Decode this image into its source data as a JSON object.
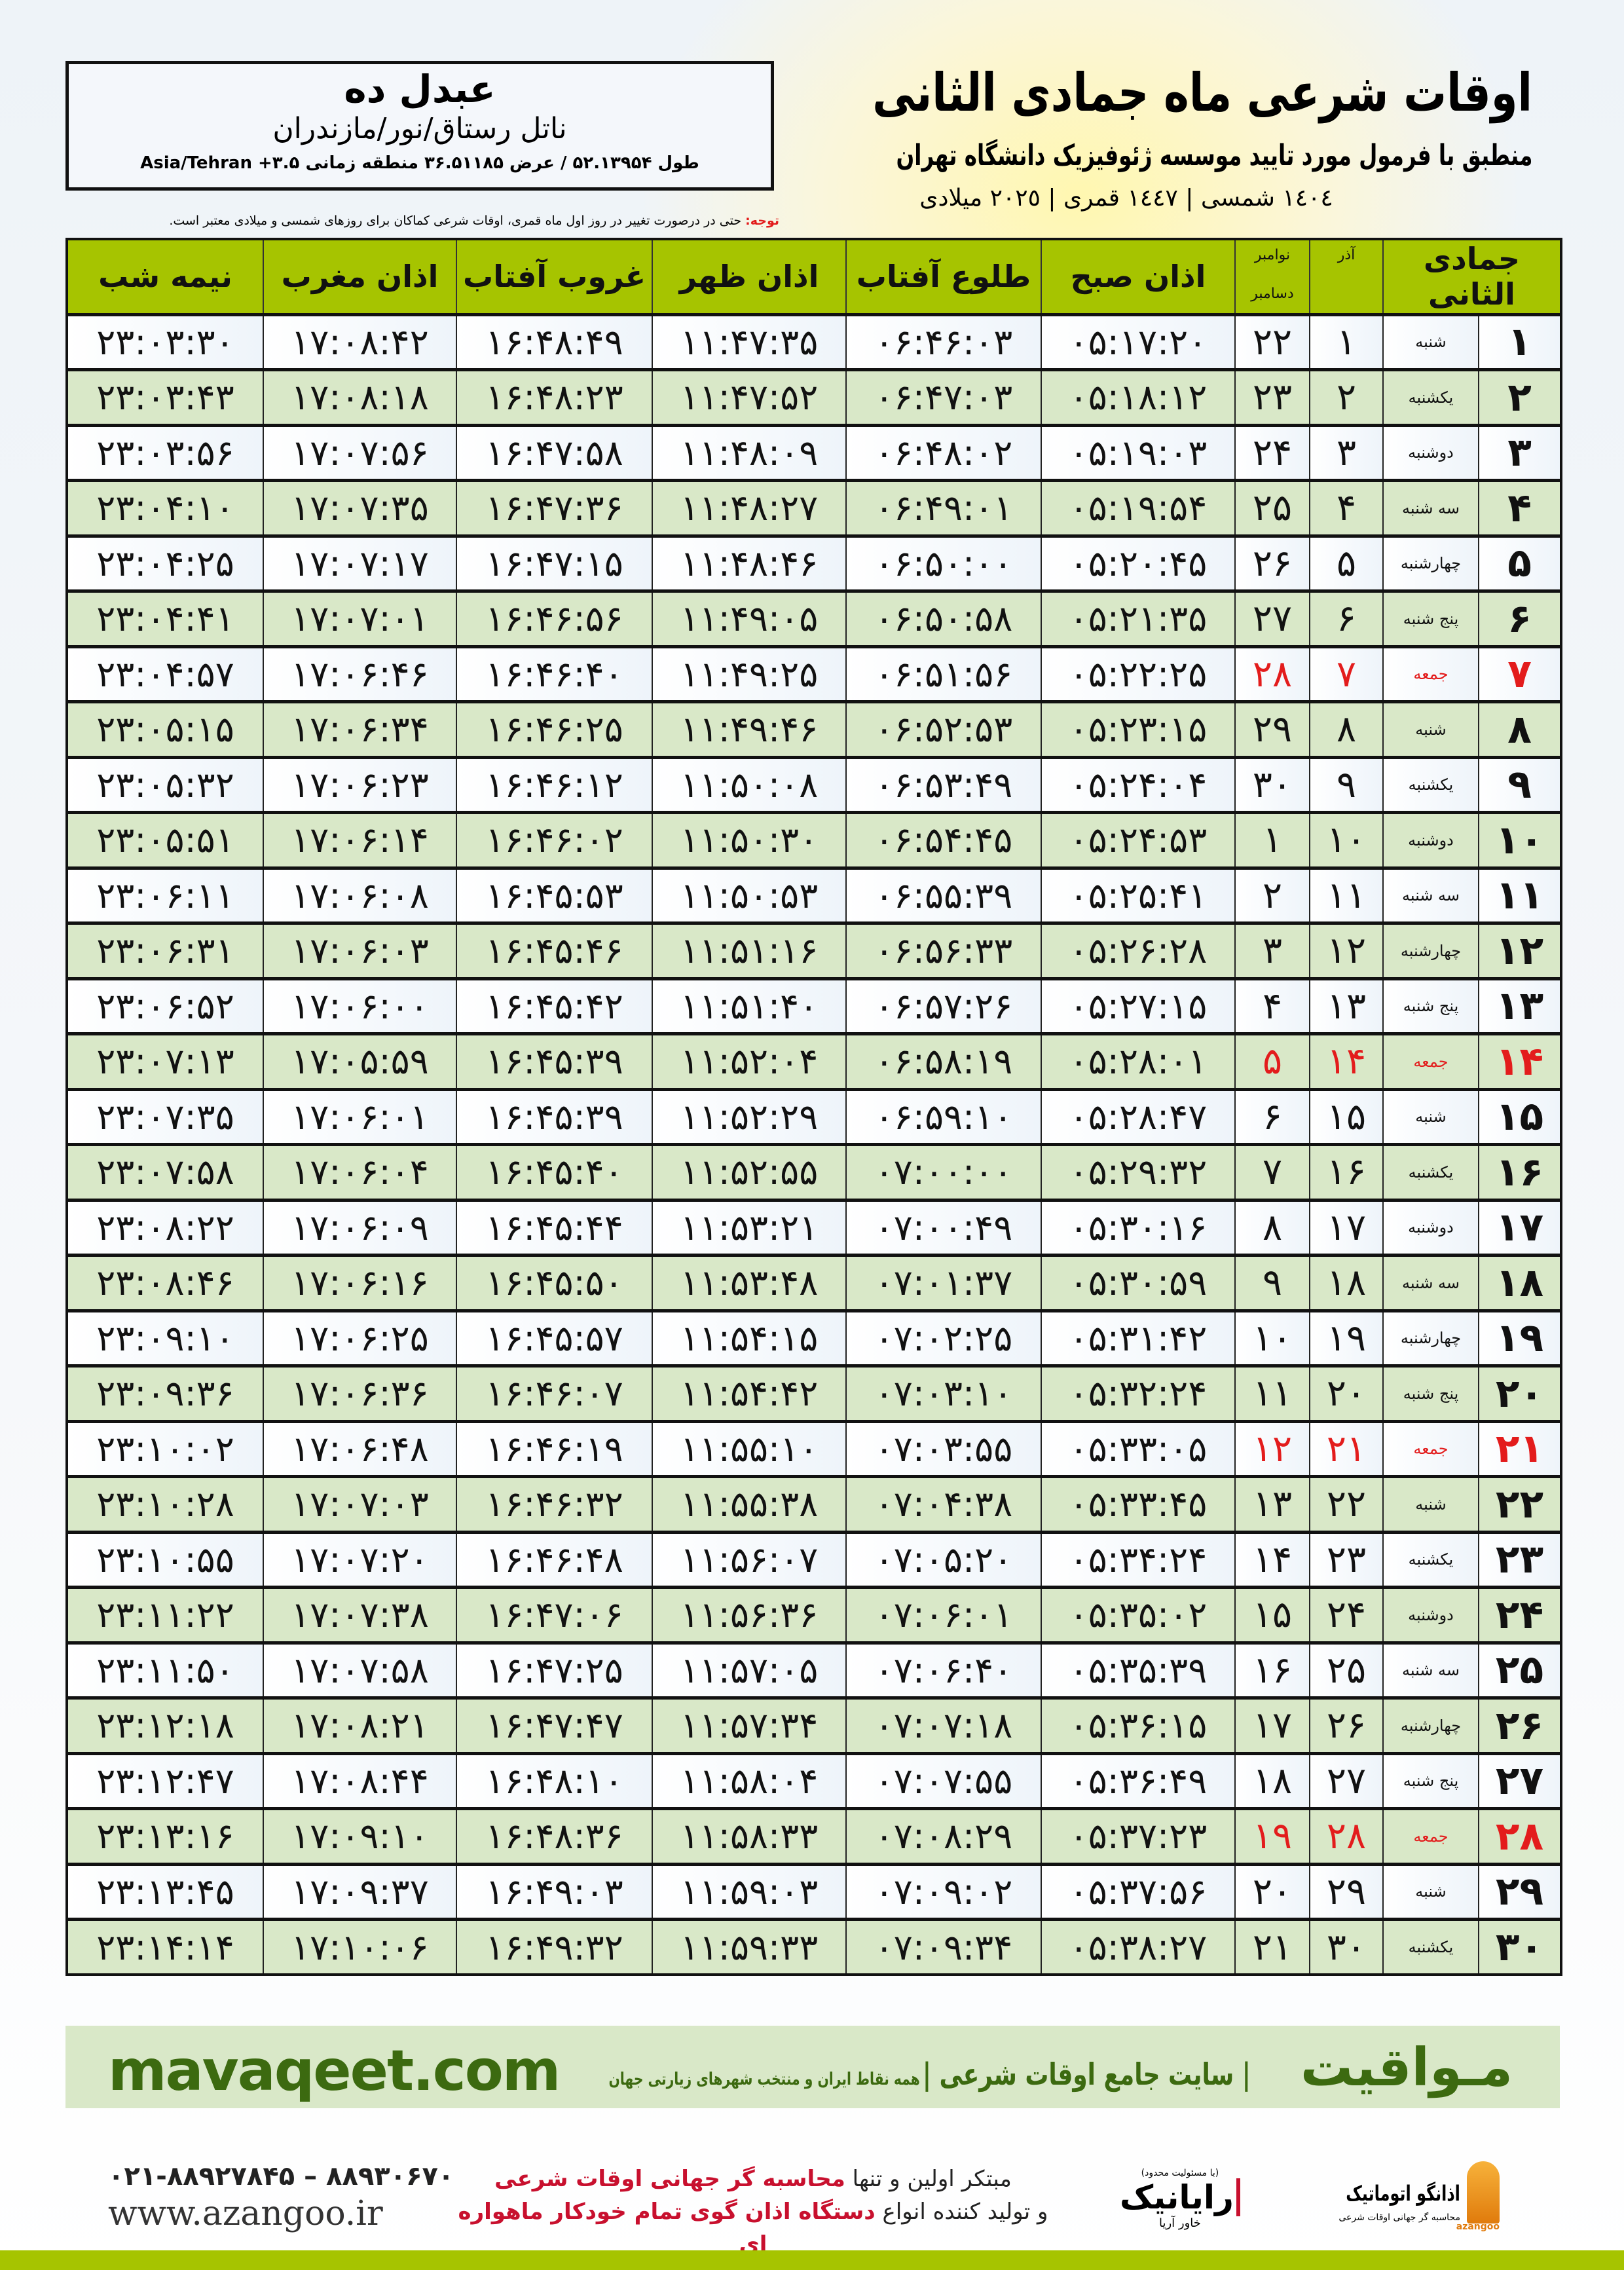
{
  "location": {
    "name": "عبدل ده",
    "path": "ناتل رستاق/نور/مازندران",
    "coords": "طول ۵۲.۱۳۹۵۴ / عرض ۳۶.۵۱۱۸۵ منطقه زمانی ۳.۵+ Asia/Tehran"
  },
  "header": {
    "title": "اوقات شرعی ماه جمادی الثانی",
    "subtitle": "منطبق با فرمول مورد تایید موسسه ژئوفیزیک دانشگاه تهران",
    "years": "١٤٠٤ شمسی | ١٤٤٧ قمری | ٢٠٢٥ میلادی"
  },
  "note": {
    "label": "توجه:",
    "text": " حتی در درصورت تغییر در روز اول ماه قمری، اوقات شرعی کماکان برای روزهای شمسی و میلادی معتبر است."
  },
  "table": {
    "columns": {
      "month": "جمادی الثانی",
      "azar": "آذر",
      "nov": "نوامبر",
      "dec": "دسامبر",
      "sobh": "اذان صبح",
      "tolu": "طلوع آفتاب",
      "zohr": "اذان ظهر",
      "ghurub": "غروب آفتاب",
      "maghrib": "اذان مغرب",
      "nime": "نیمه شب"
    },
    "holiday_color": "#e31c1c",
    "header_color": "#a6c400",
    "alt_row_color": "#d9e8c8",
    "rows": [
      [
        "۱",
        "شنبه",
        "۱",
        "۲۲",
        "۰۵:۱۷:۲۰",
        "۰۶:۴۶:۰۳",
        "۱۱:۴۷:۳۵",
        "۱۶:۴۸:۴۹",
        "۱۷:۰۸:۴۲",
        "۲۳:۰۳:۳۰",
        false
      ],
      [
        "۲",
        "یکشنبه",
        "۲",
        "۲۳",
        "۰۵:۱۸:۱۲",
        "۰۶:۴۷:۰۳",
        "۱۱:۴۷:۵۲",
        "۱۶:۴۸:۲۳",
        "۱۷:۰۸:۱۸",
        "۲۳:۰۳:۴۳",
        false
      ],
      [
        "۳",
        "دوشنبه",
        "۳",
        "۲۴",
        "۰۵:۱۹:۰۳",
        "۰۶:۴۸:۰۲",
        "۱۱:۴۸:۰۹",
        "۱۶:۴۷:۵۸",
        "۱۷:۰۷:۵۶",
        "۲۳:۰۳:۵۶",
        false
      ],
      [
        "۴",
        "سه شنبه",
        "۴",
        "۲۵",
        "۰۵:۱۹:۵۴",
        "۰۶:۴۹:۰۱",
        "۱۱:۴۸:۲۷",
        "۱۶:۴۷:۳۶",
        "۱۷:۰۷:۳۵",
        "۲۳:۰۴:۱۰",
        false
      ],
      [
        "۵",
        "چهارشنبه",
        "۵",
        "۲۶",
        "۰۵:۲۰:۴۵",
        "۰۶:۵۰:۰۰",
        "۱۱:۴۸:۴۶",
        "۱۶:۴۷:۱۵",
        "۱۷:۰۷:۱۷",
        "۲۳:۰۴:۲۵",
        false
      ],
      [
        "۶",
        "پنج شنبه",
        "۶",
        "۲۷",
        "۰۵:۲۱:۳۵",
        "۰۶:۵۰:۵۸",
        "۱۱:۴۹:۰۵",
        "۱۶:۴۶:۵۶",
        "۱۷:۰۷:۰۱",
        "۲۳:۰۴:۴۱",
        false
      ],
      [
        "۷",
        "جمعه",
        "۷",
        "۲۸",
        "۰۵:۲۲:۲۵",
        "۰۶:۵۱:۵۶",
        "۱۱:۴۹:۲۵",
        "۱۶:۴۶:۴۰",
        "۱۷:۰۶:۴۶",
        "۲۳:۰۴:۵۷",
        true
      ],
      [
        "۸",
        "شنبه",
        "۸",
        "۲۹",
        "۰۵:۲۳:۱۵",
        "۰۶:۵۲:۵۳",
        "۱۱:۴۹:۴۶",
        "۱۶:۴۶:۲۵",
        "۱۷:۰۶:۳۴",
        "۲۳:۰۵:۱۵",
        false
      ],
      [
        "۹",
        "یکشنبه",
        "۹",
        "۳۰",
        "۰۵:۲۴:۰۴",
        "۰۶:۵۳:۴۹",
        "۱۱:۵۰:۰۸",
        "۱۶:۴۶:۱۲",
        "۱۷:۰۶:۲۳",
        "۲۳:۰۵:۳۲",
        false
      ],
      [
        "۱۰",
        "دوشنبه",
        "۱۰",
        "۱",
        "۰۵:۲۴:۵۳",
        "۰۶:۵۴:۴۵",
        "۱۱:۵۰:۳۰",
        "۱۶:۴۶:۰۲",
        "۱۷:۰۶:۱۴",
        "۲۳:۰۵:۵۱",
        false
      ],
      [
        "۱۱",
        "سه شنبه",
        "۱۱",
        "۲",
        "۰۵:۲۵:۴۱",
        "۰۶:۵۵:۳۹",
        "۱۱:۵۰:۵۳",
        "۱۶:۴۵:۵۳",
        "۱۷:۰۶:۰۸",
        "۲۳:۰۶:۱۱",
        false
      ],
      [
        "۱۲",
        "چهارشنبه",
        "۱۲",
        "۳",
        "۰۵:۲۶:۲۸",
        "۰۶:۵۶:۳۳",
        "۱۱:۵۱:۱۶",
        "۱۶:۴۵:۴۶",
        "۱۷:۰۶:۰۳",
        "۲۳:۰۶:۳۱",
        false
      ],
      [
        "۱۳",
        "پنج شنبه",
        "۱۳",
        "۴",
        "۰۵:۲۷:۱۵",
        "۰۶:۵۷:۲۶",
        "۱۱:۵۱:۴۰",
        "۱۶:۴۵:۴۲",
        "۱۷:۰۶:۰۰",
        "۲۳:۰۶:۵۲",
        false
      ],
      [
        "۱۴",
        "جمعه",
        "۱۴",
        "۵",
        "۰۵:۲۸:۰۱",
        "۰۶:۵۸:۱۹",
        "۱۱:۵۲:۰۴",
        "۱۶:۴۵:۳۹",
        "۱۷:۰۵:۵۹",
        "۲۳:۰۷:۱۳",
        true
      ],
      [
        "۱۵",
        "شنبه",
        "۱۵",
        "۶",
        "۰۵:۲۸:۴۷",
        "۰۶:۵۹:۱۰",
        "۱۱:۵۲:۲۹",
        "۱۶:۴۵:۳۹",
        "۱۷:۰۶:۰۱",
        "۲۳:۰۷:۳۵",
        false
      ],
      [
        "۱۶",
        "یکشنبه",
        "۱۶",
        "۷",
        "۰۵:۲۹:۳۲",
        "۰۷:۰۰:۰۰",
        "۱۱:۵۲:۵۵",
        "۱۶:۴۵:۴۰",
        "۱۷:۰۶:۰۴",
        "۲۳:۰۷:۵۸",
        false
      ],
      [
        "۱۷",
        "دوشنبه",
        "۱۷",
        "۸",
        "۰۵:۳۰:۱۶",
        "۰۷:۰۰:۴۹",
        "۱۱:۵۳:۲۱",
        "۱۶:۴۵:۴۴",
        "۱۷:۰۶:۰۹",
        "۲۳:۰۸:۲۲",
        false
      ],
      [
        "۱۸",
        "سه شنبه",
        "۱۸",
        "۹",
        "۰۵:۳۰:۵۹",
        "۰۷:۰۱:۳۷",
        "۱۱:۵۳:۴۸",
        "۱۶:۴۵:۵۰",
        "۱۷:۰۶:۱۶",
        "۲۳:۰۸:۴۶",
        false
      ],
      [
        "۱۹",
        "چهارشنبه",
        "۱۹",
        "۱۰",
        "۰۵:۳۱:۴۲",
        "۰۷:۰۲:۲۵",
        "۱۱:۵۴:۱۵",
        "۱۶:۴۵:۵۷",
        "۱۷:۰۶:۲۵",
        "۲۳:۰۹:۱۰",
        false
      ],
      [
        "۲۰",
        "پنج شنبه",
        "۲۰",
        "۱۱",
        "۰۵:۳۲:۲۴",
        "۰۷:۰۳:۱۰",
        "۱۱:۵۴:۴۲",
        "۱۶:۴۶:۰۷",
        "۱۷:۰۶:۳۶",
        "۲۳:۰۹:۳۶",
        false
      ],
      [
        "۲۱",
        "جمعه",
        "۲۱",
        "۱۲",
        "۰۵:۳۳:۰۵",
        "۰۷:۰۳:۵۵",
        "۱۱:۵۵:۱۰",
        "۱۶:۴۶:۱۹",
        "۱۷:۰۶:۴۸",
        "۲۳:۱۰:۰۲",
        true
      ],
      [
        "۲۲",
        "شنبه",
        "۲۲",
        "۱۳",
        "۰۵:۳۳:۴۵",
        "۰۷:۰۴:۳۸",
        "۱۱:۵۵:۳۸",
        "۱۶:۴۶:۳۲",
        "۱۷:۰۷:۰۳",
        "۲۳:۱۰:۲۸",
        false
      ],
      [
        "۲۳",
        "یکشنبه",
        "۲۳",
        "۱۴",
        "۰۵:۳۴:۲۴",
        "۰۷:۰۵:۲۰",
        "۱۱:۵۶:۰۷",
        "۱۶:۴۶:۴۸",
        "۱۷:۰۷:۲۰",
        "۲۳:۱۰:۵۵",
        false
      ],
      [
        "۲۴",
        "دوشنبه",
        "۲۴",
        "۱۵",
        "۰۵:۳۵:۰۲",
        "۰۷:۰۶:۰۱",
        "۱۱:۵۶:۳۶",
        "۱۶:۴۷:۰۶",
        "۱۷:۰۷:۳۸",
        "۲۳:۱۱:۲۲",
        false
      ],
      [
        "۲۵",
        "سه شنبه",
        "۲۵",
        "۱۶",
        "۰۵:۳۵:۳۹",
        "۰۷:۰۶:۴۰",
        "۱۱:۵۷:۰۵",
        "۱۶:۴۷:۲۵",
        "۱۷:۰۷:۵۸",
        "۲۳:۱۱:۵۰",
        false
      ],
      [
        "۲۶",
        "چهارشنبه",
        "۲۶",
        "۱۷",
        "۰۵:۳۶:۱۵",
        "۰۷:۰۷:۱۸",
        "۱۱:۵۷:۳۴",
        "۱۶:۴۷:۴۷",
        "۱۷:۰۸:۲۱",
        "۲۳:۱۲:۱۸",
        false
      ],
      [
        "۲۷",
        "پنج شنبه",
        "۲۷",
        "۱۸",
        "۰۵:۳۶:۴۹",
        "۰۷:۰۷:۵۵",
        "۱۱:۵۸:۰۴",
        "۱۶:۴۸:۱۰",
        "۱۷:۰۸:۴۴",
        "۲۳:۱۲:۴۷",
        false
      ],
      [
        "۲۸",
        "جمعه",
        "۲۸",
        "۱۹",
        "۰۵:۳۷:۲۳",
        "۰۷:۰۸:۲۹",
        "۱۱:۵۸:۳۳",
        "۱۶:۴۸:۳۶",
        "۱۷:۰۹:۱۰",
        "۲۳:۱۳:۱۶",
        true
      ],
      [
        "۲۹",
        "شنبه",
        "۲۹",
        "۲۰",
        "۰۵:۳۷:۵۶",
        "۰۷:۰۹:۰۲",
        "۱۱:۵۹:۰۳",
        "۱۶:۴۹:۰۳",
        "۱۷:۰۹:۳۷",
        "۲۳:۱۳:۴۵",
        false
      ],
      [
        "۳۰",
        "یکشنبه",
        "۳۰",
        "۲۱",
        "۰۵:۳۸:۲۷",
        "۰۷:۰۹:۳۴",
        "۱۱:۵۹:۳۳",
        "۱۶:۴۹:۳۲",
        "۱۷:۱۰:۰۶",
        "۲۳:۱۴:۱۴",
        false
      ]
    ]
  },
  "footer": {
    "site_url": "mavaqeet.com",
    "site_brand": "مـواقیت",
    "site_tag_main": "| سایت جامع اوقات شرعی |",
    "site_tag_sub": "همه نقاط ایران و منتخب شهرهای زیارتی جهان",
    "phone": "۰۲۱-۸۸۹۲۷۸۴۵ – ۸۸۹۳۰۶۷۰",
    "web": "www.azangoo.ir",
    "promo_1a": "مبتکر اولین و تنها ",
    "promo_1b": "محاسبه گر جهانی اوقات شرعی",
    "promo_2a": "و تولید کننده انواع ",
    "promo_2b": "دستگاه اذان گوی تمام خودکار ماهواره ای",
    "rayanik_note": "(با مسئولیت محدود)",
    "rayanik": "رایانیک",
    "rayanik_sub": "خاور آریا",
    "azangoo_name": "اذانگو اتوماتیک",
    "azangoo_sub": "محاسبه گر جهانی اوقات شرعی",
    "azangoo_latin": "azangoo",
    "brand_color": "#3c6a10",
    "accent_red": "#c8102e"
  }
}
